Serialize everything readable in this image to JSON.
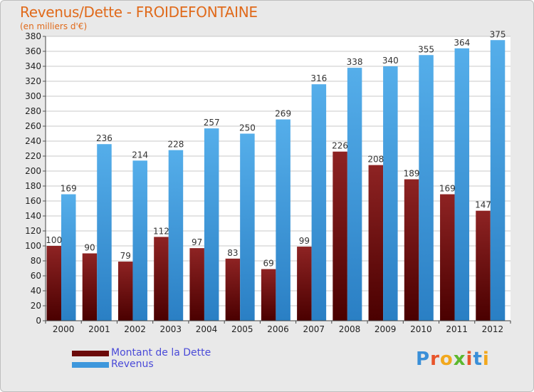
{
  "title": "Revenus/Dette - FROIDEFONTAINE",
  "subtitle": "(en milliers d'€)",
  "logo_text": "Proxiti",
  "colors": {
    "debt": "#6b0a0a",
    "revenue": "#3d97dc",
    "title": "#e06a1b",
    "legend_text": "#4a4ad8"
  },
  "chart_data": {
    "type": "bar",
    "title": "Revenus/Dette - FROIDEFONTAINE",
    "categories": [
      "2000",
      "2001",
      "2002",
      "2003",
      "2004",
      "2005",
      "2006",
      "2007",
      "2008",
      "2009",
      "2010",
      "2011",
      "2012"
    ],
    "series": [
      {
        "name": "Montant de la Dette",
        "values": [
          100,
          90,
          79,
          112,
          97,
          83,
          69,
          99,
          226,
          208,
          189,
          169,
          147
        ]
      },
      {
        "name": "Revenus",
        "values": [
          169,
          236,
          214,
          228,
          257,
          250,
          269,
          316,
          338,
          340,
          355,
          364,
          375
        ]
      }
    ],
    "ylim": [
      0,
      380
    ],
    "ytick_step": 20,
    "grid": true,
    "legend_position": "bottom-left"
  }
}
